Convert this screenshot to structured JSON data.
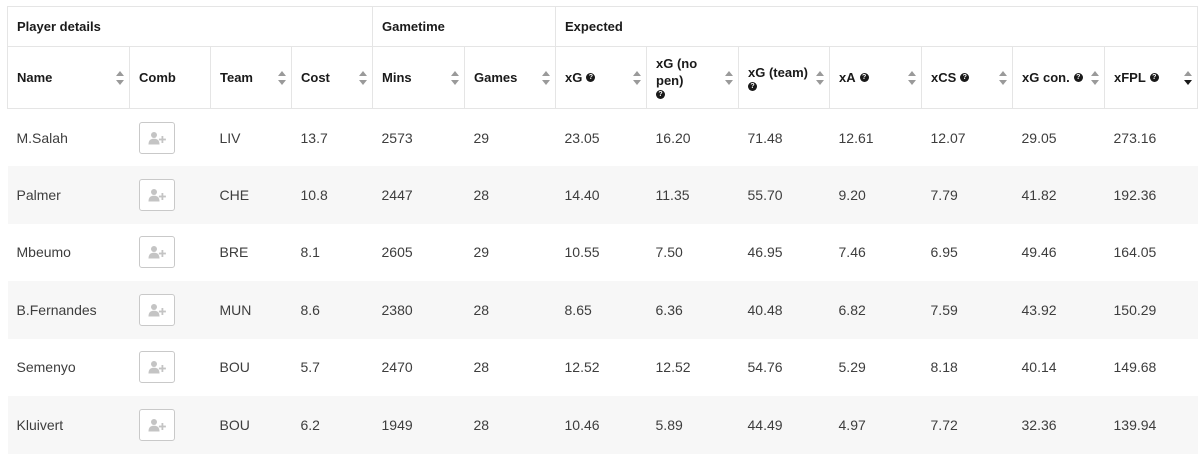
{
  "groups": {
    "player_details": "Player details",
    "gametime": "Gametime",
    "expected": "Expected"
  },
  "columns": {
    "name": "Name",
    "comb": "Comb",
    "team": "Team",
    "cost": "Cost",
    "mins": "Mins",
    "games": "Games",
    "xg": "xG",
    "xg_no_pen": "xG (no pen)",
    "xg_team": "xG (team)",
    "xa": "xA",
    "xcs": "xCS",
    "xg_con": "xG con.",
    "xfpl": "xFPL"
  },
  "sort": {
    "column": "xFPL",
    "direction": "descending"
  },
  "icons": {
    "help": "question-circle-icon",
    "sort": "sort-arrows-icon",
    "comb_button": "add-user-icon"
  },
  "colors": {
    "header_text": "#1a1a1a",
    "cell_text": "#3d3d3d",
    "row_alt_bg": "#f7f7f7",
    "border": "#e5e5e5"
  },
  "rows": [
    {
      "name": "M.Salah",
      "team": "LIV",
      "cost": "13.7",
      "mins": "2573",
      "games": "29",
      "xg": "23.05",
      "xg_no_pen": "16.20",
      "xg_team": "71.48",
      "xa": "12.61",
      "xcs": "12.07",
      "xg_con": "29.05",
      "xfpl": "273.16"
    },
    {
      "name": "Palmer",
      "team": "CHE",
      "cost": "10.8",
      "mins": "2447",
      "games": "28",
      "xg": "14.40",
      "xg_no_pen": "11.35",
      "xg_team": "55.70",
      "xa": "9.20",
      "xcs": "7.79",
      "xg_con": "41.82",
      "xfpl": "192.36"
    },
    {
      "name": "Mbeumo",
      "team": "BRE",
      "cost": "8.1",
      "mins": "2605",
      "games": "29",
      "xg": "10.55",
      "xg_no_pen": "7.50",
      "xg_team": "46.95",
      "xa": "7.46",
      "xcs": "6.95",
      "xg_con": "49.46",
      "xfpl": "164.05"
    },
    {
      "name": "B.Fernandes",
      "team": "MUN",
      "cost": "8.6",
      "mins": "2380",
      "games": "28",
      "xg": "8.65",
      "xg_no_pen": "6.36",
      "xg_team": "40.48",
      "xa": "6.82",
      "xcs": "7.59",
      "xg_con": "43.92",
      "xfpl": "150.29"
    },
    {
      "name": "Semenyo",
      "team": "BOU",
      "cost": "5.7",
      "mins": "2470",
      "games": "28",
      "xg": "12.52",
      "xg_no_pen": "12.52",
      "xg_team": "54.76",
      "xa": "5.29",
      "xcs": "8.18",
      "xg_con": "40.14",
      "xfpl": "149.68"
    },
    {
      "name": "Kluivert",
      "team": "BOU",
      "cost": "6.2",
      "mins": "1949",
      "games": "28",
      "xg": "10.46",
      "xg_no_pen": "5.89",
      "xg_team": "44.49",
      "xa": "4.97",
      "xcs": "7.72",
      "xg_con": "32.36",
      "xfpl": "139.94"
    }
  ]
}
